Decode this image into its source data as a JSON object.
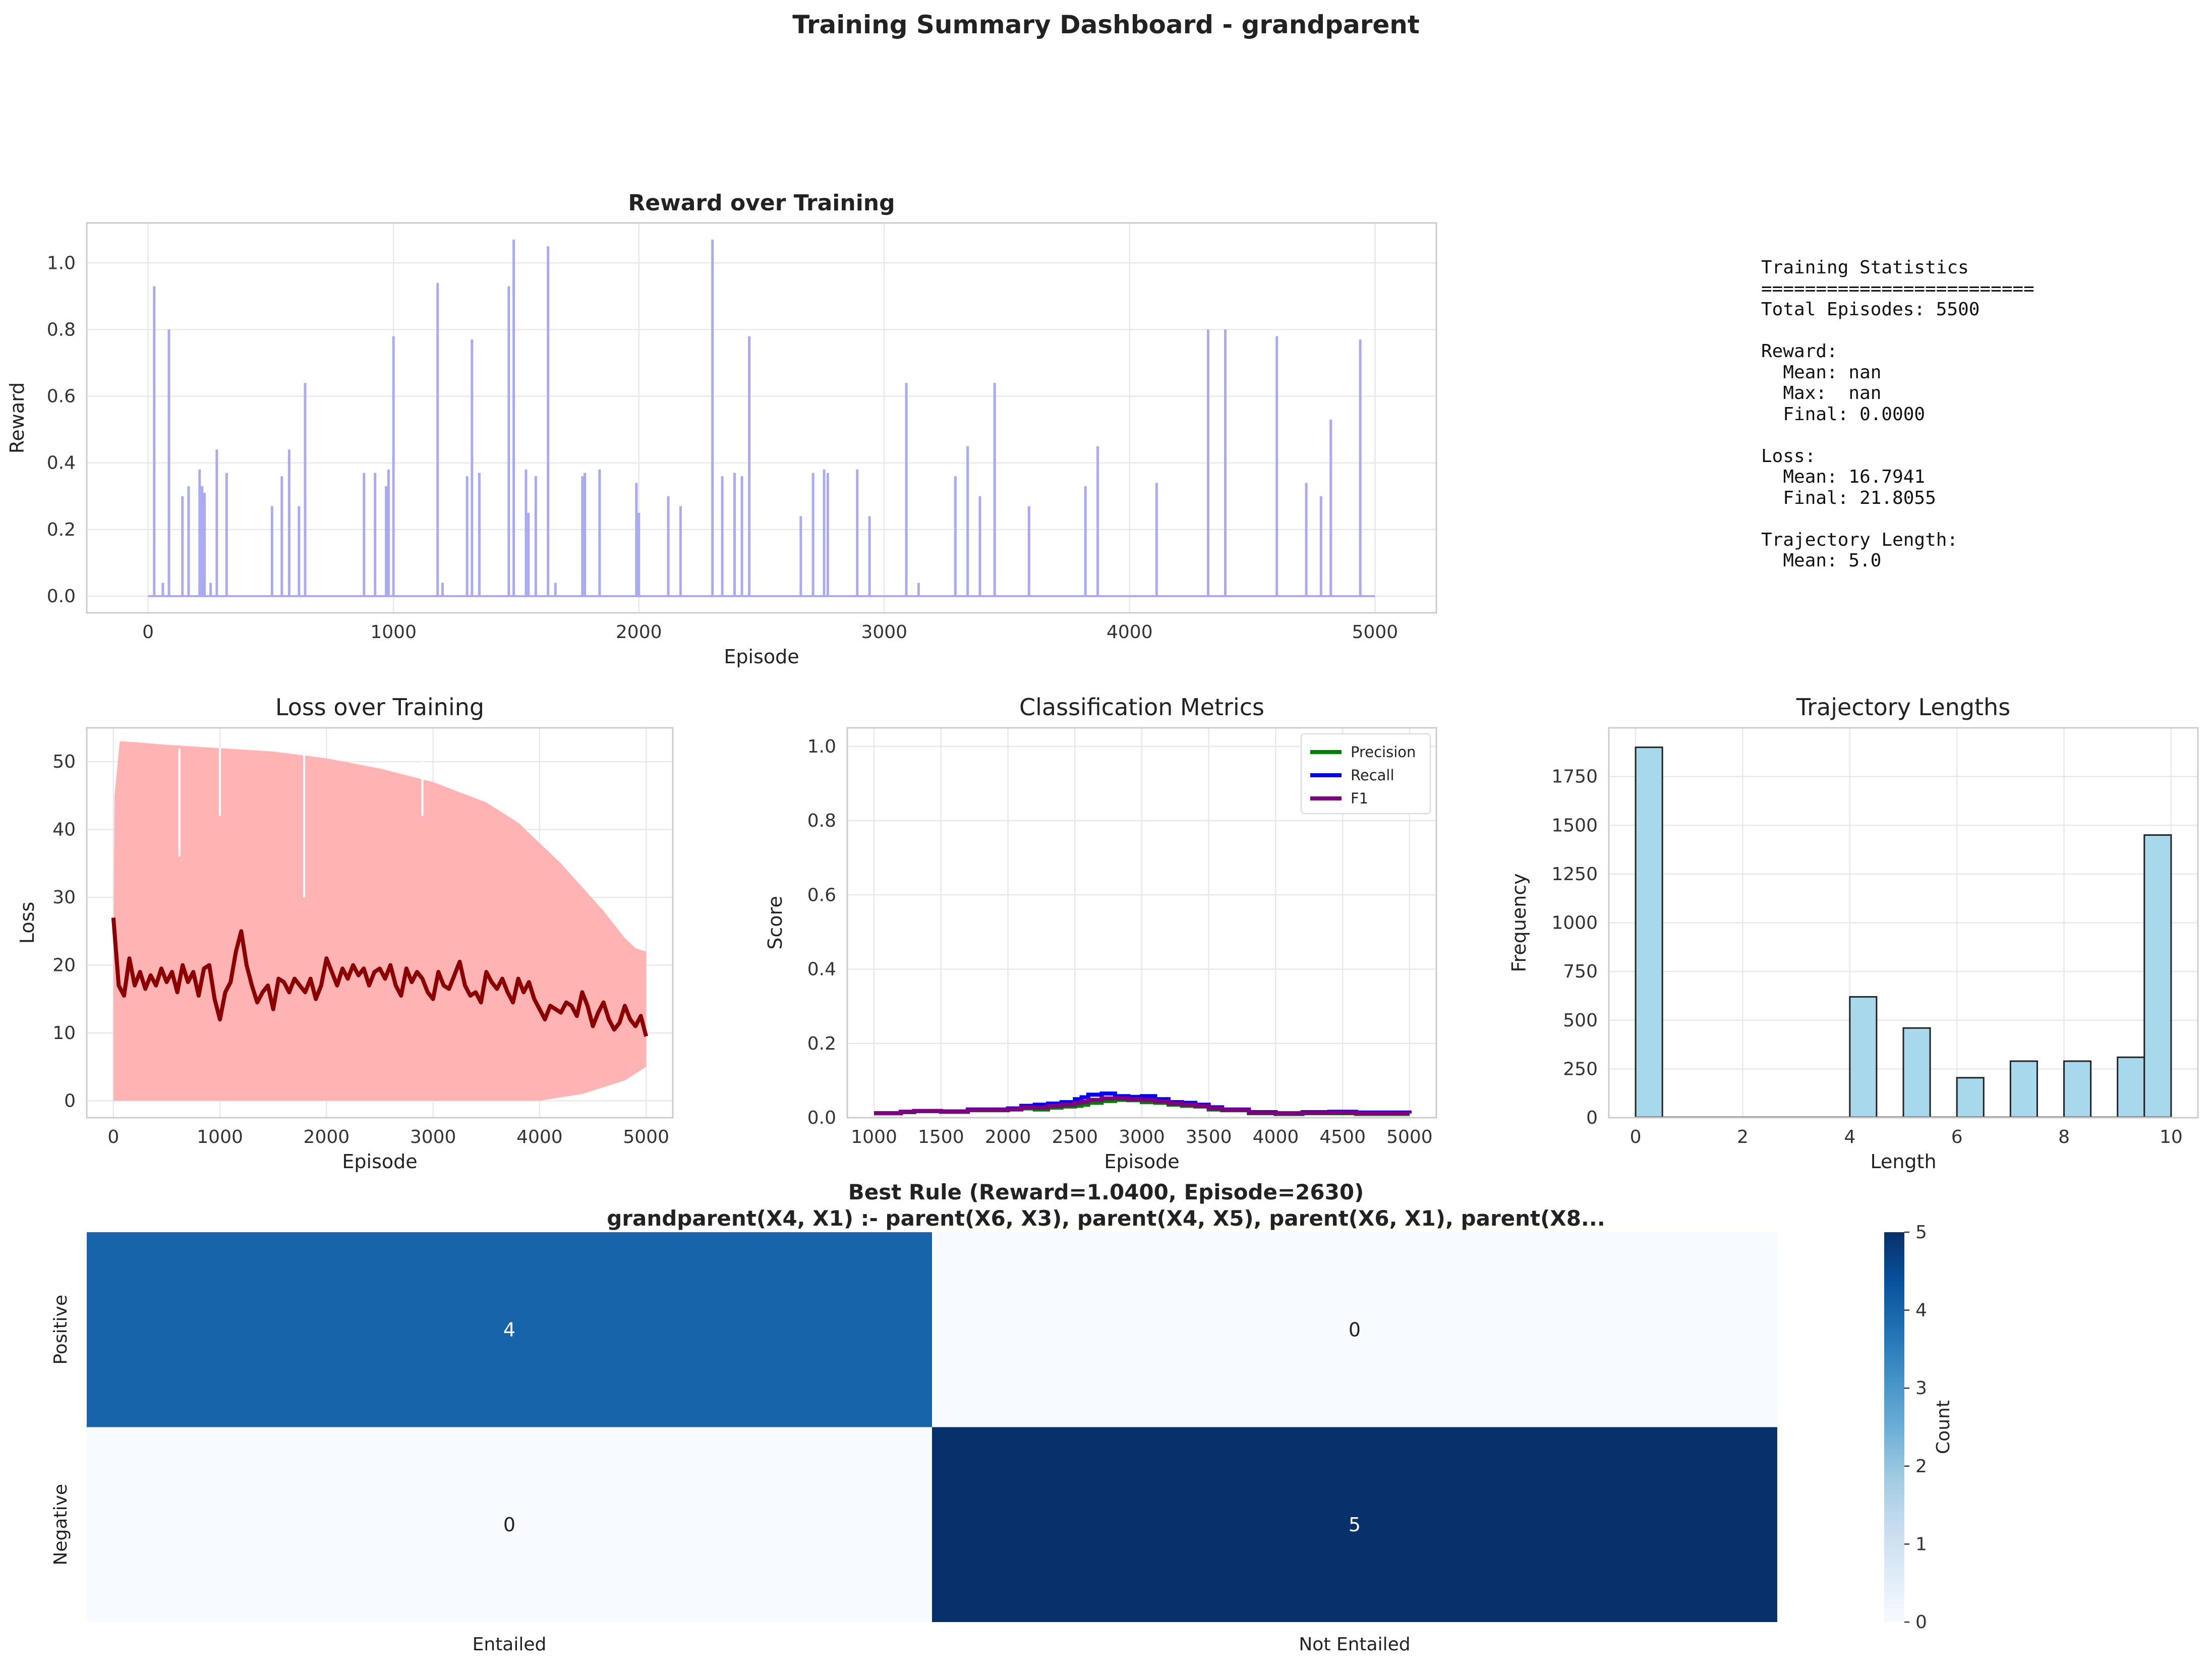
{
  "title": "Training Summary Dashboard - grandparent",
  "stats": {
    "lines": [
      "Training Statistics",
      "=========================",
      "Total Episodes: 5500",
      "",
      "Reward:",
      "  Mean: nan",
      "  Max:  nan",
      "  Final: 0.0000",
      "",
      "Loss:",
      "  Mean: 16.7941",
      "  Final: 21.8055",
      "",
      "Trajectory Length:",
      "  Mean: 5.0"
    ]
  },
  "chart_data": [
    {
      "id": "reward",
      "type": "line",
      "title": "Reward over Training",
      "xlabel": "Episode",
      "ylabel": "Reward",
      "xlim": [
        -250,
        5250
      ],
      "ylim": [
        -0.05,
        1.12
      ],
      "xticks": [
        0,
        1000,
        2000,
        3000,
        4000,
        5000
      ],
      "yticks": [
        0.0,
        0.2,
        0.4,
        0.6,
        0.8,
        1.0
      ],
      "grid": true,
      "colors": {
        "line": "#aaaaf2"
      },
      "series": [
        {
          "baseline": 0.0,
          "x_range": [
            0,
            5000
          ],
          "spikes": [
            [
              25,
              0.93
            ],
            [
              60,
              0.04
            ],
            [
              85,
              0.8
            ],
            [
              140,
              0.3
            ],
            [
              165,
              0.33
            ],
            [
              210,
              0.38
            ],
            [
              220,
              0.33
            ],
            [
              230,
              0.31
            ],
            [
              255,
              0.04
            ],
            [
              280,
              0.44
            ],
            [
              320,
              0.37
            ],
            [
              505,
              0.27
            ],
            [
              545,
              0.36
            ],
            [
              575,
              0.44
            ],
            [
              615,
              0.27
            ],
            [
              640,
              0.64
            ],
            [
              880,
              0.37
            ],
            [
              925,
              0.37
            ],
            [
              970,
              0.33
            ],
            [
              980,
              0.38
            ],
            [
              1000,
              0.78
            ],
            [
              1180,
              0.94
            ],
            [
              1200,
              0.04
            ],
            [
              1300,
              0.36
            ],
            [
              1320,
              0.77
            ],
            [
              1350,
              0.37
            ],
            [
              1470,
              0.93
            ],
            [
              1490,
              1.07
            ],
            [
              1540,
              0.38
            ],
            [
              1550,
              0.25
            ],
            [
              1580,
              0.36
            ],
            [
              1630,
              1.05
            ],
            [
              1660,
              0.04
            ],
            [
              1770,
              0.36
            ],
            [
              1780,
              0.37
            ],
            [
              1840,
              0.38
            ],
            [
              1990,
              0.34
            ],
            [
              2000,
              0.25
            ],
            [
              2120,
              0.3
            ],
            [
              2170,
              0.27
            ],
            [
              2300,
              1.07
            ],
            [
              2340,
              0.36
            ],
            [
              2390,
              0.37
            ],
            [
              2420,
              0.36
            ],
            [
              2450,
              0.78
            ],
            [
              2660,
              0.24
            ],
            [
              2710,
              0.37
            ],
            [
              2755,
              0.38
            ],
            [
              2770,
              0.37
            ],
            [
              2890,
              0.38
            ],
            [
              2940,
              0.24
            ],
            [
              3090,
              0.64
            ],
            [
              3140,
              0.04
            ],
            [
              3290,
              0.36
            ],
            [
              3340,
              0.45
            ],
            [
              3390,
              0.3
            ],
            [
              3450,
              0.64
            ],
            [
              3590,
              0.27
            ],
            [
              3820,
              0.33
            ],
            [
              3870,
              0.45
            ],
            [
              4110,
              0.34
            ],
            [
              4320,
              0.8
            ],
            [
              4390,
              0.8
            ],
            [
              4600,
              0.78
            ],
            [
              4720,
              0.34
            ],
            [
              4780,
              0.3
            ],
            [
              4820,
              0.53
            ],
            [
              4940,
              0.77
            ]
          ]
        }
      ]
    },
    {
      "id": "loss",
      "type": "area",
      "title": "Loss over Training",
      "xlabel": "Episode",
      "ylabel": "Loss",
      "xlim": [
        -250,
        5250
      ],
      "ylim": [
        -2.5,
        55
      ],
      "xticks": [
        0,
        1000,
        2000,
        3000,
        4000,
        5000
      ],
      "yticks": [
        0,
        10,
        20,
        30,
        40,
        50
      ],
      "grid": true,
      "colors": {
        "raw": "#ffb3b3",
        "smoothed": "#8b0000"
      },
      "series": [
        {
          "name": "raw-envelope",
          "x": [
            0,
            10,
            60,
            100,
            500,
            1000,
            1500,
            2000,
            2500,
            3000,
            3500,
            3800,
            4000,
            4200,
            4400,
            4600,
            4800,
            4900,
            5000
          ],
          "upper": [
            20,
            45,
            53,
            53,
            52.5,
            52,
            51.5,
            50.5,
            49,
            47,
            44,
            41,
            38,
            35,
            31.5,
            28,
            24,
            22.5,
            22
          ],
          "lower": [
            0,
            0,
            0,
            0,
            0,
            0,
            0,
            0,
            0,
            0,
            0,
            0,
            0,
            0.5,
            1,
            2,
            3,
            4,
            5
          ]
        },
        {
          "name": "smoothed",
          "x": [
            0,
            50,
            100,
            150,
            200,
            250,
            300,
            350,
            400,
            450,
            500,
            550,
            600,
            650,
            700,
            750,
            800,
            850,
            900,
            950,
            1000,
            1050,
            1100,
            1150,
            1200,
            1250,
            1300,
            1350,
            1400,
            1450,
            1500,
            1550,
            1600,
            1650,
            1700,
            1750,
            1800,
            1850,
            1900,
            1950,
            2000,
            2050,
            2100,
            2150,
            2200,
            2250,
            2300,
            2350,
            2400,
            2450,
            2500,
            2550,
            2600,
            2650,
            2700,
            2750,
            2800,
            2850,
            2900,
            2950,
            3000,
            3050,
            3100,
            3150,
            3200,
            3250,
            3300,
            3350,
            3400,
            3450,
            3500,
            3550,
            3600,
            3650,
            3700,
            3750,
            3800,
            3850,
            3900,
            3950,
            4000,
            4050,
            4100,
            4150,
            4200,
            4250,
            4300,
            4350,
            4400,
            4450,
            4500,
            4550,
            4600,
            4650,
            4700,
            4750,
            4800,
            4850,
            4900,
            4950,
            5000
          ],
          "values": [
            27,
            17,
            15.5,
            21,
            17,
            19,
            16.5,
            18.5,
            17,
            19.5,
            17.5,
            19,
            16,
            20,
            17.5,
            19,
            15.5,
            19.5,
            20,
            15,
            12,
            16,
            17.5,
            22,
            25,
            20,
            17,
            14.5,
            16,
            17,
            13.5,
            18,
            17.5,
            16,
            18,
            17,
            16,
            18,
            15,
            17,
            21,
            19,
            17,
            19.5,
            18,
            20,
            18.5,
            19.5,
            17,
            19,
            19.5,
            18,
            20,
            17,
            15.5,
            19.5,
            17.5,
            19,
            18,
            16,
            15,
            19,
            17,
            16.5,
            18.5,
            20.5,
            17,
            15.5,
            16,
            14.5,
            19,
            17.5,
            16.5,
            18,
            16,
            14.5,
            18,
            16,
            17.5,
            15,
            13.5,
            12,
            14,
            13.5,
            13,
            14.5,
            14,
            12.5,
            16,
            14,
            11,
            13,
            14.5,
            12,
            10.5,
            11.5,
            14,
            12,
            11,
            12.5,
            9.5
          ]
        }
      ]
    },
    {
      "id": "metrics",
      "type": "line",
      "title": "Classification Metrics",
      "xlabel": "Episode",
      "ylabel": "Score",
      "xlim": [
        800,
        5200
      ],
      "ylim": [
        0,
        1.05
      ],
      "xticks": [
        1000,
        1500,
        2000,
        2500,
        3000,
        3500,
        4000,
        4500,
        5000
      ],
      "yticks": [
        0.0,
        0.2,
        0.4,
        0.6,
        0.8,
        1.0
      ],
      "grid": true,
      "legend": "top-right",
      "x": [
        1000,
        1200,
        1300,
        1500,
        1700,
        2000,
        2100,
        2200,
        2300,
        2400,
        2500,
        2550,
        2600,
        2700,
        2800,
        2900,
        3000,
        3100,
        3200,
        3300,
        3400,
        3500,
        3600,
        3800,
        4000,
        4200,
        4400,
        4600,
        4800,
        5000
      ],
      "series": [
        {
          "name": "Precision",
          "color": "#008000",
          "values": [
            0.012,
            0.015,
            0.018,
            0.016,
            0.02,
            0.022,
            0.025,
            0.022,
            0.027,
            0.03,
            0.032,
            0.035,
            0.04,
            0.045,
            0.048,
            0.047,
            0.042,
            0.04,
            0.035,
            0.032,
            0.03,
            0.022,
            0.02,
            0.012,
            0.01,
            0.012,
            0.012,
            0.01,
            0.01,
            0.01
          ]
        },
        {
          "name": "Recall",
          "color": "#0000ff",
          "values": [
            0.012,
            0.016,
            0.018,
            0.017,
            0.022,
            0.025,
            0.032,
            0.035,
            0.038,
            0.042,
            0.05,
            0.055,
            0.062,
            0.065,
            0.058,
            0.056,
            0.058,
            0.05,
            0.042,
            0.04,
            0.035,
            0.028,
            0.022,
            0.015,
            0.012,
            0.015,
            0.016,
            0.014,
            0.014,
            0.012
          ]
        },
        {
          "name": "F1",
          "color": "#800080",
          "values": [
            0.012,
            0.016,
            0.018,
            0.016,
            0.021,
            0.023,
            0.028,
            0.027,
            0.032,
            0.035,
            0.04,
            0.043,
            0.048,
            0.052,
            0.052,
            0.05,
            0.048,
            0.044,
            0.038,
            0.035,
            0.032,
            0.025,
            0.021,
            0.013,
            0.011,
            0.013,
            0.014,
            0.012,
            0.012,
            0.011
          ]
        }
      ]
    },
    {
      "id": "traj",
      "type": "bar",
      "title": "Trajectory Lengths",
      "xlabel": "Length",
      "ylabel": "Frequency",
      "xlim": [
        -0.5,
        10.5
      ],
      "ylim": [
        0,
        2000
      ],
      "xticks": [
        0,
        2,
        4,
        6,
        8,
        10
      ],
      "yticks": [
        0,
        250,
        500,
        750,
        1000,
        1250,
        1500,
        1750
      ],
      "grid": true,
      "bin_width": 0.5,
      "colors": {
        "fill": "#a8d8ec",
        "edge": "#222222"
      },
      "bins": [
        0,
        0.5,
        1,
        1.5,
        2,
        2.5,
        3,
        3.5,
        4,
        4.5,
        5,
        5.5,
        6,
        6.5,
        7,
        7.5,
        8,
        8.5,
        9,
        9.5
      ],
      "values": [
        1900,
        0,
        0,
        0,
        0,
        0,
        0,
        0,
        620,
        0,
        460,
        0,
        205,
        0,
        290,
        0,
        290,
        0,
        310,
        1450
      ]
    },
    {
      "id": "confusion",
      "type": "heatmap",
      "title": "Best Rule (Reward=1.0400, Episode=2630)",
      "subtitle": "grandparent(X4, X1) :- parent(X6, X3), parent(X4, X5), parent(X6, X1), parent(X8...",
      "rows": [
        "Positive",
        "Negative"
      ],
      "columns": [
        "Entailed",
        "Not Entailed"
      ],
      "values": [
        [
          4,
          0
        ],
        [
          0,
          5
        ]
      ],
      "colorbar": {
        "label": "Count",
        "range": [
          0,
          5
        ],
        "ticks": [
          0,
          1,
          2,
          3,
          4,
          5
        ]
      },
      "colors": {
        "low": "#f7fbff",
        "high": "#08306b"
      }
    }
  ]
}
